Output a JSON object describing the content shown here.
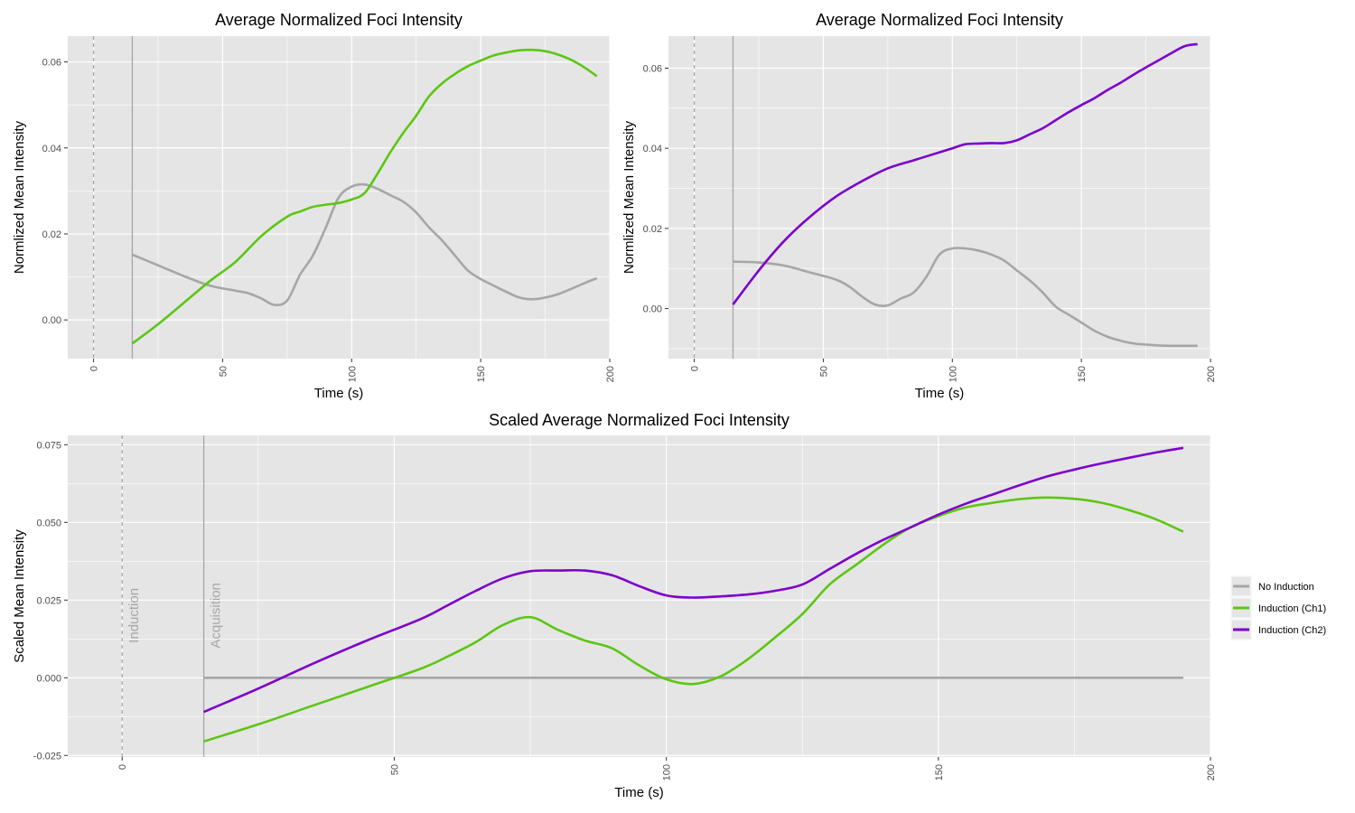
{
  "colors": {
    "panel_bg": "#e5e5e5",
    "grid": "#ffffff",
    "no_induction": "#a6a6a6",
    "ch1": "#5cc613",
    "ch2": "#7d00cc",
    "marker": "#a6a6a6"
  },
  "legend": {
    "placement": "right",
    "entries": [
      {
        "key": "no_induction",
        "label": "No Induction"
      },
      {
        "key": "ch1",
        "label": "Induction (Ch1)"
      },
      {
        "key": "ch2",
        "label": "Induction (Ch2)"
      }
    ]
  },
  "chart_data": [
    {
      "type": "line",
      "title": "Average Normalized Foci Intensity",
      "xlabel": "Time (s)",
      "ylabel": "Normlized Mean Intensity",
      "xlim": [
        -10,
        200
      ],
      "ylim": [
        -0.009,
        0.066
      ],
      "xticks": [
        0,
        50,
        100,
        150,
        200
      ],
      "yticks": [
        0.0,
        0.02,
        0.04,
        0.06
      ],
      "ytick_labels": [
        "0.00",
        "0.02",
        "0.04",
        "0.06"
      ],
      "grid": true,
      "vlines": [
        {
          "x": 0,
          "style": "dashed"
        },
        {
          "x": 15,
          "style": "solid"
        }
      ],
      "series": [
        {
          "key": "no_induction",
          "x": [
            15,
            25,
            35,
            45,
            55,
            60,
            65,
            70,
            75,
            80,
            85,
            90,
            95,
            100,
            105,
            110,
            115,
            120,
            125,
            130,
            135,
            140,
            145,
            150,
            155,
            160,
            165,
            170,
            175,
            180,
            185,
            190,
            195
          ],
          "y": [
            0.0152,
            0.0127,
            0.0102,
            0.008,
            0.0068,
            0.0062,
            0.005,
            0.0035,
            0.0045,
            0.0105,
            0.015,
            0.0215,
            0.0285,
            0.031,
            0.0315,
            0.0305,
            0.029,
            0.0275,
            0.025,
            0.0215,
            0.0185,
            0.015,
            0.0115,
            0.0095,
            0.008,
            0.0065,
            0.0052,
            0.0048,
            0.0052,
            0.006,
            0.0072,
            0.0085,
            0.0097
          ]
        },
        {
          "key": "ch1",
          "x": [
            15,
            25,
            35,
            45,
            55,
            65,
            75,
            80,
            85,
            90,
            95,
            100,
            105,
            110,
            115,
            120,
            125,
            130,
            135,
            140,
            145,
            150,
            155,
            160,
            165,
            170,
            175,
            180,
            185,
            190,
            195
          ],
          "y": [
            -0.0055,
            -0.001,
            0.004,
            0.009,
            0.0135,
            0.0195,
            0.024,
            0.0252,
            0.0263,
            0.0268,
            0.0272,
            0.028,
            0.0295,
            0.034,
            0.039,
            0.0435,
            0.0475,
            0.052,
            0.055,
            0.0572,
            0.059,
            0.0603,
            0.0615,
            0.0622,
            0.0627,
            0.0628,
            0.0625,
            0.0617,
            0.0605,
            0.0588,
            0.0567
          ]
        }
      ]
    },
    {
      "type": "line",
      "title": "Average Normalized Foci Intensity",
      "xlabel": "Time (s)",
      "ylabel": "Normlized Mean Intensity",
      "xlim": [
        -10,
        200
      ],
      "ylim": [
        -0.0125,
        0.068
      ],
      "xticks": [
        0,
        50,
        100,
        150,
        200
      ],
      "yticks": [
        0.0,
        0.02,
        0.04,
        0.06
      ],
      "ytick_labels": [
        "0.00",
        "0.02",
        "0.04",
        "0.06"
      ],
      "grid": true,
      "vlines": [
        {
          "x": 0,
          "style": "dashed"
        },
        {
          "x": 15,
          "style": "solid"
        }
      ],
      "series": [
        {
          "key": "no_induction",
          "x": [
            15,
            25,
            35,
            45,
            55,
            60,
            65,
            70,
            75,
            80,
            85,
            90,
            95,
            100,
            105,
            110,
            115,
            120,
            125,
            130,
            135,
            140,
            145,
            150,
            155,
            160,
            165,
            170,
            175,
            180,
            185,
            190,
            195
          ],
          "y": [
            0.0117,
            0.0115,
            0.0107,
            0.009,
            0.0072,
            0.0055,
            0.003,
            0.001,
            0.0008,
            0.0025,
            0.004,
            0.008,
            0.0135,
            0.015,
            0.015,
            0.0145,
            0.0135,
            0.012,
            0.0095,
            0.007,
            0.004,
            0.0005,
            -0.0015,
            -0.0035,
            -0.0055,
            -0.007,
            -0.008,
            -0.0087,
            -0.009,
            -0.0092,
            -0.0093,
            -0.0093,
            -0.0093
          ]
        },
        {
          "key": "ch2",
          "x": [
            15,
            25,
            35,
            45,
            55,
            65,
            75,
            85,
            95,
            100,
            105,
            110,
            115,
            120,
            125,
            130,
            135,
            140,
            145,
            150,
            155,
            160,
            165,
            170,
            175,
            180,
            185,
            190,
            195
          ],
          "y": [
            0.001,
            0.0095,
            0.017,
            0.023,
            0.028,
            0.0318,
            0.035,
            0.037,
            0.039,
            0.04,
            0.041,
            0.0412,
            0.0413,
            0.0413,
            0.042,
            0.0435,
            0.045,
            0.047,
            0.049,
            0.0508,
            0.0525,
            0.0545,
            0.0563,
            0.0583,
            0.0602,
            0.062,
            0.0638,
            0.0655,
            0.066
          ]
        }
      ]
    },
    {
      "type": "line",
      "title": "Scaled Average Normalized Foci Intensity",
      "xlabel": "Time (s)",
      "ylabel": "Scaled Mean Intensity",
      "xlim": [
        -10,
        200
      ],
      "ylim": [
        -0.0255,
        0.078
      ],
      "xticks": [
        0,
        50,
        100,
        150,
        200
      ],
      "yticks": [
        -0.025,
        0.0,
        0.025,
        0.05,
        0.075
      ],
      "ytick_labels": [
        "-0.025",
        "0.000",
        "0.025",
        "0.050",
        "0.075"
      ],
      "grid": true,
      "vlines": [
        {
          "x": 0,
          "style": "dashed",
          "label": "Induction"
        },
        {
          "x": 15,
          "style": "solid",
          "label": "Acquisition"
        }
      ],
      "series": [
        {
          "key": "no_induction",
          "x": [
            15,
            195
          ],
          "y": [
            0.0,
            0.0
          ]
        },
        {
          "key": "ch1",
          "x": [
            15,
            25,
            35,
            45,
            55,
            60,
            65,
            70,
            75,
            80,
            85,
            90,
            95,
            100,
            105,
            110,
            115,
            120,
            125,
            130,
            135,
            140,
            145,
            150,
            155,
            160,
            165,
            170,
            175,
            180,
            185,
            190,
            195
          ],
          "y": [
            -0.0205,
            -0.015,
            -0.009,
            -0.003,
            0.003,
            0.007,
            0.0115,
            0.017,
            0.0195,
            0.0155,
            0.012,
            0.0095,
            0.004,
            -0.0005,
            -0.002,
            0.0005,
            0.006,
            0.013,
            0.0205,
            0.03,
            0.0365,
            0.043,
            0.0485,
            0.052,
            0.0548,
            0.0563,
            0.0575,
            0.058,
            0.0576,
            0.0563,
            0.054,
            0.051,
            0.047
          ]
        },
        {
          "key": "ch2",
          "x": [
            15,
            25,
            35,
            45,
            55,
            60,
            65,
            70,
            75,
            80,
            85,
            90,
            95,
            100,
            105,
            110,
            115,
            120,
            125,
            130,
            135,
            140,
            145,
            150,
            155,
            160,
            165,
            170,
            175,
            180,
            185,
            190,
            195
          ],
          "y": [
            -0.011,
            -0.0035,
            0.0045,
            0.012,
            0.019,
            0.0235,
            0.028,
            0.032,
            0.0343,
            0.0345,
            0.0345,
            0.033,
            0.0295,
            0.0265,
            0.0258,
            0.0262,
            0.0268,
            0.028,
            0.03,
            0.035,
            0.04,
            0.0445,
            0.0485,
            0.0525,
            0.056,
            0.059,
            0.062,
            0.0648,
            0.067,
            0.069,
            0.0708,
            0.0725,
            0.074
          ]
        }
      ]
    }
  ]
}
